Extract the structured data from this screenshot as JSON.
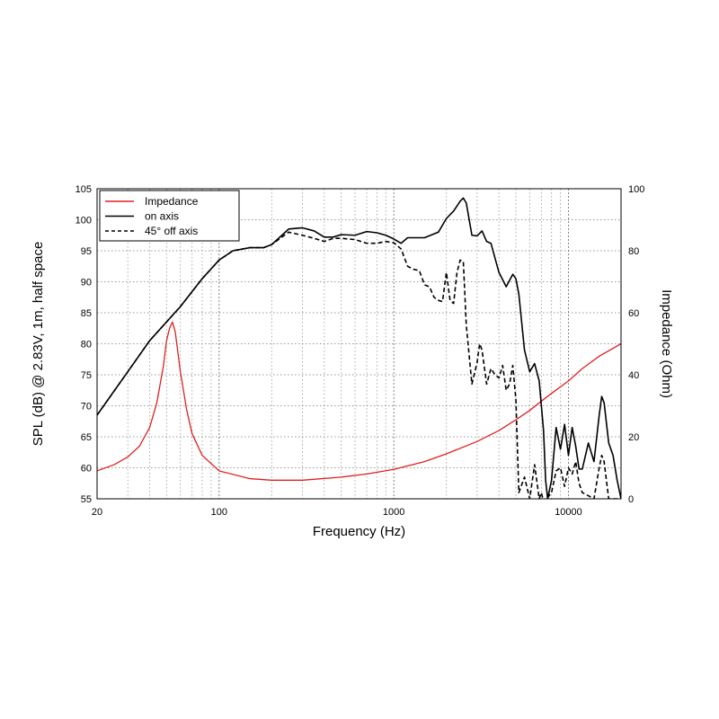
{
  "chart_data": {
    "type": "line",
    "title": "",
    "xlabel": "Frequency (Hz)",
    "ylabel": "SPL (dB) @ 2.83V, 1m, half space",
    "y2label": "Impedance (Ohm)",
    "x_scale": "log",
    "xlim": [
      20,
      20000
    ],
    "ylim": [
      55,
      105
    ],
    "y2lim": [
      0,
      100
    ],
    "x_ticks": [
      "20",
      "100",
      "1000",
      "10000"
    ],
    "y_ticks": [
      "55",
      "60",
      "65",
      "70",
      "75",
      "80",
      "85",
      "90",
      "95",
      "100",
      "105"
    ],
    "y2_ticks": [
      "0",
      "20",
      "40",
      "60",
      "80",
      "100"
    ],
    "grid": true,
    "legend_position": "top-left",
    "series": [
      {
        "name": "Impedance",
        "axis": "right",
        "color": "#e02020",
        "style": "solid",
        "x": [
          20,
          25,
          30,
          35,
          40,
          44,
          48,
          50,
          52,
          54,
          56,
          60,
          65,
          70,
          80,
          100,
          150,
          200,
          300,
          500,
          700,
          1000,
          1500,
          2000,
          3000,
          4000,
          5000,
          6000,
          7000,
          8000,
          10000,
          12000,
          15000,
          20000
        ],
        "values": [
          9,
          11,
          13.5,
          17,
          23,
          31,
          43,
          51,
          55,
          57,
          54,
          41,
          29,
          21,
          14,
          9,
          6.5,
          6,
          6,
          7,
          8,
          9.5,
          12,
          14.5,
          18.5,
          22,
          25.5,
          28.5,
          31.5,
          34,
          38,
          42,
          46,
          50
        ]
      },
      {
        "name": "on axis",
        "axis": "left",
        "color": "#000000",
        "style": "solid",
        "x": [
          20,
          30,
          40,
          60,
          80,
          100,
          120,
          150,
          180,
          200,
          250,
          300,
          350,
          400,
          450,
          500,
          600,
          700,
          800,
          900,
          1000,
          1100,
          1200,
          1500,
          1800,
          2000,
          2200,
          2400,
          2500,
          2600,
          2800,
          3000,
          3200,
          3400,
          3600,
          4000,
          4400,
          4800,
          5000,
          5200,
          5600,
          6000,
          6400,
          6800,
          7200,
          7400,
          7600,
          8000,
          8500,
          9000,
          9500,
          10000,
          10500,
          11000,
          11500,
          12000,
          13000,
          14000,
          15000,
          15500,
          16000,
          17000,
          18000,
          19000,
          20000
        ],
        "values": [
          68.5,
          75.5,
          80.5,
          86,
          90.5,
          93.5,
          95,
          95.5,
          95.5,
          96,
          98.5,
          98.7,
          98.2,
          97.2,
          97.2,
          97.6,
          97.5,
          98.1,
          97.9,
          97.5,
          96.9,
          96.2,
          97.1,
          97.1,
          98,
          100.2,
          101.4,
          103,
          103.5,
          102.7,
          97.5,
          97.4,
          98.2,
          96.5,
          96.2,
          91.5,
          89.2,
          91.2,
          90.5,
          88,
          79,
          75.5,
          76.8,
          74,
          66,
          58,
          55,
          58,
          66.5,
          63,
          67,
          62,
          66.5,
          63.5,
          59.8,
          59.8,
          64,
          61,
          68.5,
          71.5,
          70.5,
          64,
          62,
          58,
          55
        ]
      },
      {
        "name": "45° off axis",
        "axis": "left",
        "color": "#000000",
        "style": "dashed",
        "x": [
          20,
          30,
          40,
          60,
          80,
          100,
          120,
          150,
          180,
          200,
          250,
          300,
          350,
          400,
          450,
          500,
          600,
          700,
          800,
          900,
          1000,
          1100,
          1200,
          1300,
          1400,
          1500,
          1600,
          1700,
          1800,
          1900,
          2000,
          2100,
          2200,
          2300,
          2400,
          2500,
          2600,
          2800,
          3000,
          3100,
          3200,
          3400,
          3600,
          3800,
          4000,
          4200,
          4400,
          4600,
          4800,
          5000,
          5200,
          5600,
          6000,
          6400,
          6800,
          7000,
          7200,
          7500,
          8000,
          8500,
          9000,
          9500,
          10000,
          10500,
          11000,
          11500,
          12000,
          13000,
          14000,
          15000,
          15500,
          16000,
          17000,
          18000,
          20000
        ],
        "values": [
          68.5,
          75.5,
          80.5,
          86,
          90.5,
          93.5,
          95,
          95.5,
          95.5,
          96,
          98,
          97.5,
          97,
          96.5,
          97,
          97,
          96.8,
          96.2,
          96.2,
          96.5,
          96.3,
          95.3,
          92.5,
          92,
          91.8,
          89.5,
          89.2,
          87.5,
          87,
          86.8,
          91.5,
          87,
          86.5,
          91.5,
          93.5,
          93.3,
          83,
          73.5,
          77,
          80,
          79,
          73.5,
          76,
          75,
          74.5,
          76.5,
          72.5,
          73.5,
          76.5,
          71,
          56,
          58.5,
          55,
          60.5,
          55,
          56,
          54,
          55,
          56,
          59.5,
          60,
          57,
          60,
          59,
          61,
          57.5,
          56,
          55.5,
          55,
          60,
          62,
          61,
          55,
          55,
          55
        ]
      }
    ]
  }
}
